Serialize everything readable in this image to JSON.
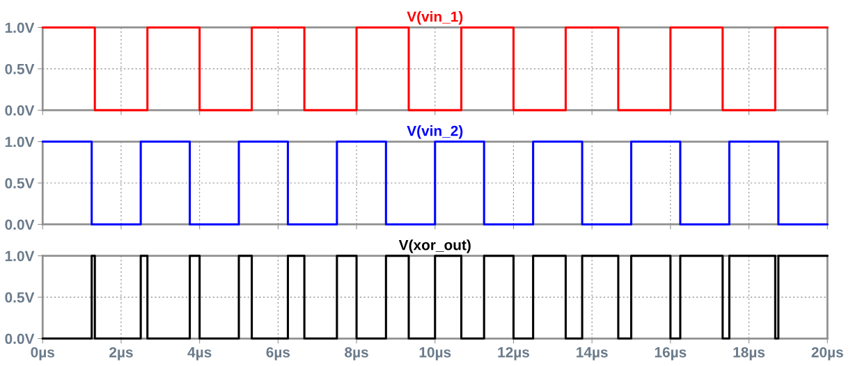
{
  "chart_data": [
    {
      "type": "step",
      "title": "V(vin_1)",
      "xlim": [
        0,
        20
      ],
      "ylim": [
        0,
        1
      ],
      "grid": true,
      "tick_labels": "y",
      "xticks": [
        0,
        2,
        4,
        6,
        8,
        10,
        12,
        14,
        16,
        18,
        20
      ],
      "yticks": [
        {
          "value": 0,
          "label": "0.0V"
        },
        {
          "value": 0.5,
          "label": "0.5V"
        },
        {
          "value": 1,
          "label": "1.0V"
        }
      ],
      "series": [
        {
          "color": "#ff0000",
          "x": [
            0,
            1.33,
            2.67,
            4,
            5.33,
            6.67,
            8,
            9.33,
            10.67,
            12,
            13.33,
            14.67,
            16,
            17.33,
            18.67,
            20
          ],
          "values": [
            1,
            0,
            1,
            0,
            1,
            0,
            1,
            0,
            1,
            0,
            1,
            0,
            1,
            0,
            1,
            1
          ]
        }
      ]
    },
    {
      "type": "step",
      "title": "V(vin_2)",
      "xlim": [
        0,
        20
      ],
      "ylim": [
        0,
        1
      ],
      "grid": true,
      "tick_labels": "y",
      "xticks": [
        0,
        2,
        4,
        6,
        8,
        10,
        12,
        14,
        16,
        18,
        20
      ],
      "yticks": [
        {
          "value": 0,
          "label": "0.0V"
        },
        {
          "value": 0.5,
          "label": "0.5V"
        },
        {
          "value": 1,
          "label": "1.0V"
        }
      ],
      "series": [
        {
          "color": "#0000ff",
          "x": [
            0,
            1.25,
            2.5,
            3.75,
            5,
            6.25,
            7.5,
            8.75,
            10,
            11.25,
            12.5,
            13.75,
            15,
            16.25,
            17.5,
            18.75,
            20
          ],
          "values": [
            1,
            0,
            1,
            0,
            1,
            0,
            1,
            0,
            1,
            0,
            1,
            0,
            1,
            0,
            1,
            0,
            0
          ]
        }
      ]
    },
    {
      "type": "step",
      "title": "V(xor_out)",
      "xlim": [
        0,
        20
      ],
      "ylim": [
        0,
        1
      ],
      "grid": true,
      "xticks": [
        {
          "value": 0,
          "label": "0µs"
        },
        {
          "value": 2,
          "label": "2µs"
        },
        {
          "value": 4,
          "label": "4µs"
        },
        {
          "value": 6,
          "label": "6µs"
        },
        {
          "value": 8,
          "label": "8µs"
        },
        {
          "value": 10,
          "label": "10µs"
        },
        {
          "value": 12,
          "label": "12µs"
        },
        {
          "value": 14,
          "label": "14µs"
        },
        {
          "value": 16,
          "label": "16µs"
        },
        {
          "value": 18,
          "label": "18µs"
        },
        {
          "value": 20,
          "label": "20µs"
        }
      ],
      "yticks": [
        {
          "value": 0,
          "label": "0.0V"
        },
        {
          "value": 0.5,
          "label": "0.5V"
        },
        {
          "value": 1,
          "label": "1.0V"
        }
      ],
      "series": [
        {
          "color": "#000000",
          "x": [
            0,
            1.25,
            1.33,
            2.5,
            2.67,
            3.75,
            4,
            5,
            5.33,
            6.25,
            6.67,
            7.5,
            8,
            8.75,
            9.33,
            10,
            10.67,
            11.25,
            12,
            12.5,
            13.33,
            13.75,
            14.67,
            15,
            16,
            16.25,
            17.33,
            17.5,
            18.67,
            18.75,
            20
          ],
          "values": [
            0,
            1,
            0,
            1,
            0,
            1,
            0,
            1,
            0,
            1,
            0,
            1,
            0,
            1,
            0,
            1,
            0,
            1,
            0,
            1,
            0,
            1,
            0,
            1,
            0,
            1,
            0,
            1,
            0,
            1,
            1
          ]
        }
      ]
    }
  ]
}
